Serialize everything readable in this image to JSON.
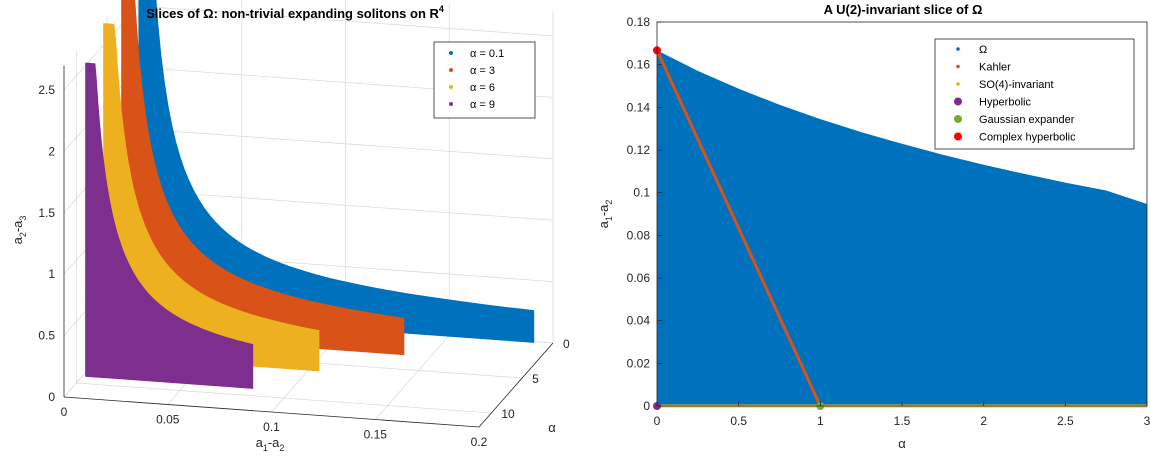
{
  "chart_data": [
    {
      "type": "area",
      "projection": "3d",
      "title": "Slices of Ω: non-trivial expanding solitons on R",
      "title_superscript": "4",
      "xlabel": "a",
      "xlabel_sub1": "1",
      "xlabel_mid": "-a",
      "xlabel_sub2": "2",
      "ylabel": "a",
      "ylabel_sub1": "2",
      "ylabel_mid": "-a",
      "ylabel_sub2": "3",
      "zlabel": "α",
      "xlim": [
        0,
        0.2
      ],
      "ylim": [
        0,
        2.7
      ],
      "alpha_lim": [
        0,
        12
      ],
      "xticks": [
        "0",
        "0.05",
        "0.1",
        "0.15",
        "0.2"
      ],
      "yticks": [
        "0",
        "0.5",
        "1",
        "1.5",
        "2",
        "2.5"
      ],
      "alpha_ticks": [
        "0",
        "5",
        "10"
      ],
      "grid": true,
      "legend_position": "top-right",
      "series": [
        {
          "name": "α = 0.1",
          "alpha": 0.1,
          "color": "#0072BD",
          "a12_max": 0.191,
          "a23_max": 2.85
        },
        {
          "name": "α = 3",
          "alpha": 3,
          "color": "#D95319",
          "a12_max": 0.137,
          "a23_max": 2.85
        },
        {
          "name": "α = 6",
          "alpha": 6,
          "color": "#EDB120",
          "a12_max": 0.105,
          "a23_max": 2.7
        },
        {
          "name": "α = 9",
          "alpha": 9,
          "color": "#7E2F8E",
          "a12_max": 0.082,
          "a23_max": 2.55
        }
      ]
    },
    {
      "type": "area",
      "title": "A U(2)-invariant slice of Ω",
      "xlabel": "α",
      "ylabel": "a",
      "ylabel_sub1": "1",
      "ylabel_mid": "-a",
      "ylabel_sub2": "2",
      "xlim": [
        0,
        3
      ],
      "ylim": [
        0,
        0.18
      ],
      "xticks": [
        "0",
        "0.5",
        "1",
        "1.5",
        "2",
        "2.5",
        "3"
      ],
      "yticks": [
        "0",
        "0.02",
        "0.04",
        "0.06",
        "0.08",
        "0.1",
        "0.12",
        "0.14",
        "0.16",
        "0.18"
      ],
      "legend_position": "top-right",
      "region": {
        "name": "Ω",
        "color": "#0072BD",
        "upper_boundary": {
          "alpha": [
            0,
            0.25,
            0.5,
            0.75,
            1,
            1.25,
            1.5,
            1.75,
            2,
            2.25,
            2.5,
            2.75,
            3
          ],
          "a1_minus_a2": [
            0.1667,
            0.1571,
            0.1487,
            0.1412,
            0.1345,
            0.1284,
            0.1229,
            0.1178,
            0.1131,
            0.1088,
            0.1047,
            0.101,
            0.0947
          ]
        }
      },
      "lines": [
        {
          "name": "Kahler",
          "color": "#D95319",
          "alpha": [
            0,
            1
          ],
          "a1_minus_a2": [
            0.1667,
            0
          ]
        },
        {
          "name": "SO(4)-invariant",
          "color": "#EDB120",
          "alpha": [
            0,
            3
          ],
          "a1_minus_a2": [
            0,
            0
          ]
        }
      ],
      "points": [
        {
          "name": "Hyperbolic",
          "color": "#7E2F8E",
          "alpha": 0,
          "a1_minus_a2": 0
        },
        {
          "name": "Gaussian expander",
          "color": "#77AC30",
          "alpha": 1,
          "a1_minus_a2": 0
        },
        {
          "name": "Complex hyperbolic",
          "color": "#FF0000",
          "alpha": 0,
          "a1_minus_a2": 0.1667
        }
      ]
    }
  ]
}
